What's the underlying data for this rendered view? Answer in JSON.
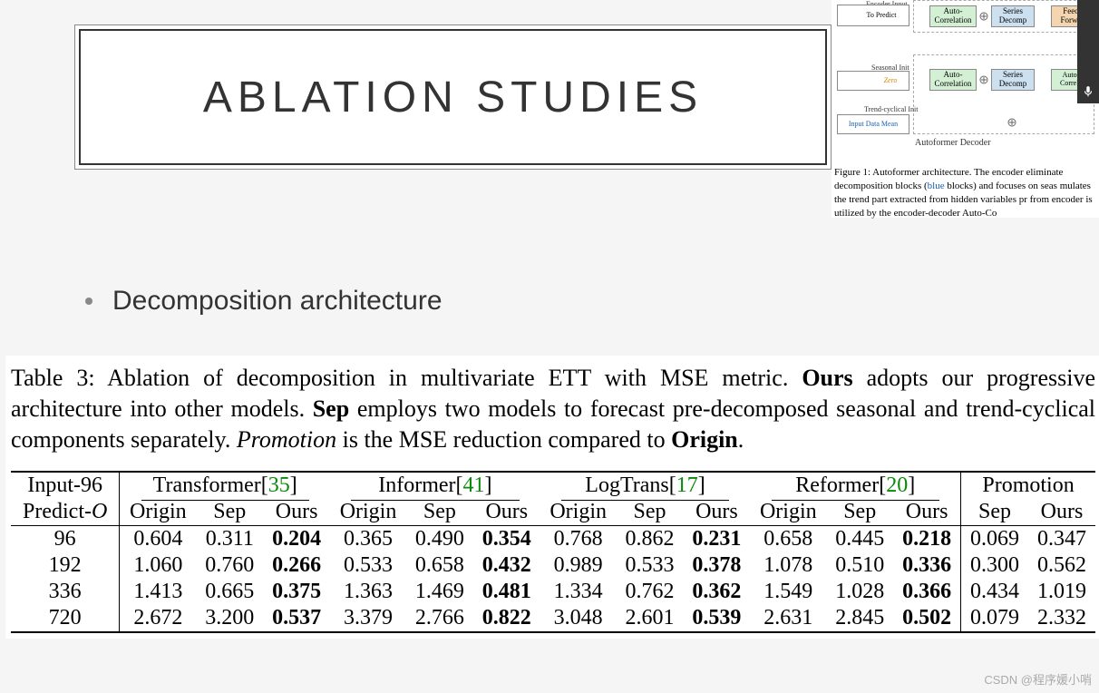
{
  "title": "ABLATION STUDIES",
  "bullet": "Decomposition architecture",
  "diagram": {
    "encoder_input": "Encoder Input",
    "to_predict": "To Predict",
    "seasonal_init": "Seasonal Init",
    "zero": "Zero",
    "trend_init": "Trend-cyclical Init",
    "input_mean": "Input Data Mean",
    "auto_corr": "Auto-\nCorrelation",
    "series_decomp": "Series\nDecomp",
    "feed_forward": "Feed\nForwa",
    "decoder_label": "Autoformer Decoder",
    "colors": {
      "green": "#d4f0d4",
      "blue": "#cce0f0",
      "orange": "#f5d4b0",
      "border": "#888888"
    }
  },
  "figure_caption": {
    "prefix": "Figure 1: Autoformer architecture. The encoder eliminate",
    "line2a": "decomposition blocks (",
    "blue_word": "blue",
    "line2b": " blocks) and focuses on seas",
    "line3": "mulates the trend part extracted from hidden variables pr",
    "line4": "from encoder is utilized by the encoder-decoder Auto-Co"
  },
  "table_caption": {
    "lead": "Table 3: Ablation of decomposition in multivariate ETT with MSE metric. ",
    "ours": "Ours",
    "t1": " adopts our progressive architecture into other models. ",
    "sep": "Sep",
    "t2": " employs two models to forecast pre-decomposed seasonal and trend-cyclical components separately. ",
    "promo": "Promotion",
    "t3": " is the MSE reduction compared to ",
    "origin": "Origin",
    "t4": "."
  },
  "table": {
    "header1": {
      "input": "Input-96",
      "models": [
        {
          "name": "Transformer",
          "cite": "35"
        },
        {
          "name": "Informer",
          "cite": "41"
        },
        {
          "name": "LogTrans",
          "cite": "17"
        },
        {
          "name": "Reformer",
          "cite": "20"
        }
      ],
      "promotion": "Promotion"
    },
    "header2": {
      "predict": "Predict-",
      "predict_o": "O",
      "cols": [
        "Origin",
        "Sep",
        "Ours",
        "Origin",
        "Sep",
        "Ours",
        "Origin",
        "Sep",
        "Ours",
        "Origin",
        "Sep",
        "Ours",
        "Sep",
        "Ours"
      ]
    },
    "rows": [
      {
        "h": "96",
        "v": [
          "0.604",
          "0.311",
          "0.204",
          "0.365",
          "0.490",
          "0.354",
          "0.768",
          "0.862",
          "0.231",
          "0.658",
          "0.445",
          "0.218",
          "0.069",
          "0.347"
        ]
      },
      {
        "h": "192",
        "v": [
          "1.060",
          "0.760",
          "0.266",
          "0.533",
          "0.658",
          "0.432",
          "0.989",
          "0.533",
          "0.378",
          "1.078",
          "0.510",
          "0.336",
          "0.300",
          "0.562"
        ]
      },
      {
        "h": "336",
        "v": [
          "1.413",
          "0.665",
          "0.375",
          "1.363",
          "1.469",
          "0.481",
          "1.334",
          "0.762",
          "0.362",
          "1.549",
          "1.028",
          "0.366",
          "0.434",
          "1.019"
        ]
      },
      {
        "h": "720",
        "v": [
          "2.672",
          "3.200",
          "0.537",
          "3.379",
          "2.766",
          "0.822",
          "3.048",
          "2.601",
          "0.539",
          "2.631",
          "2.845",
          "0.502",
          "0.079",
          "2.332"
        ]
      }
    ],
    "bold_cols": [
      2,
      5,
      8,
      11
    ],
    "cite_color": "#0a8a0a"
  },
  "watermark": "CSDN @程序媛小哨"
}
